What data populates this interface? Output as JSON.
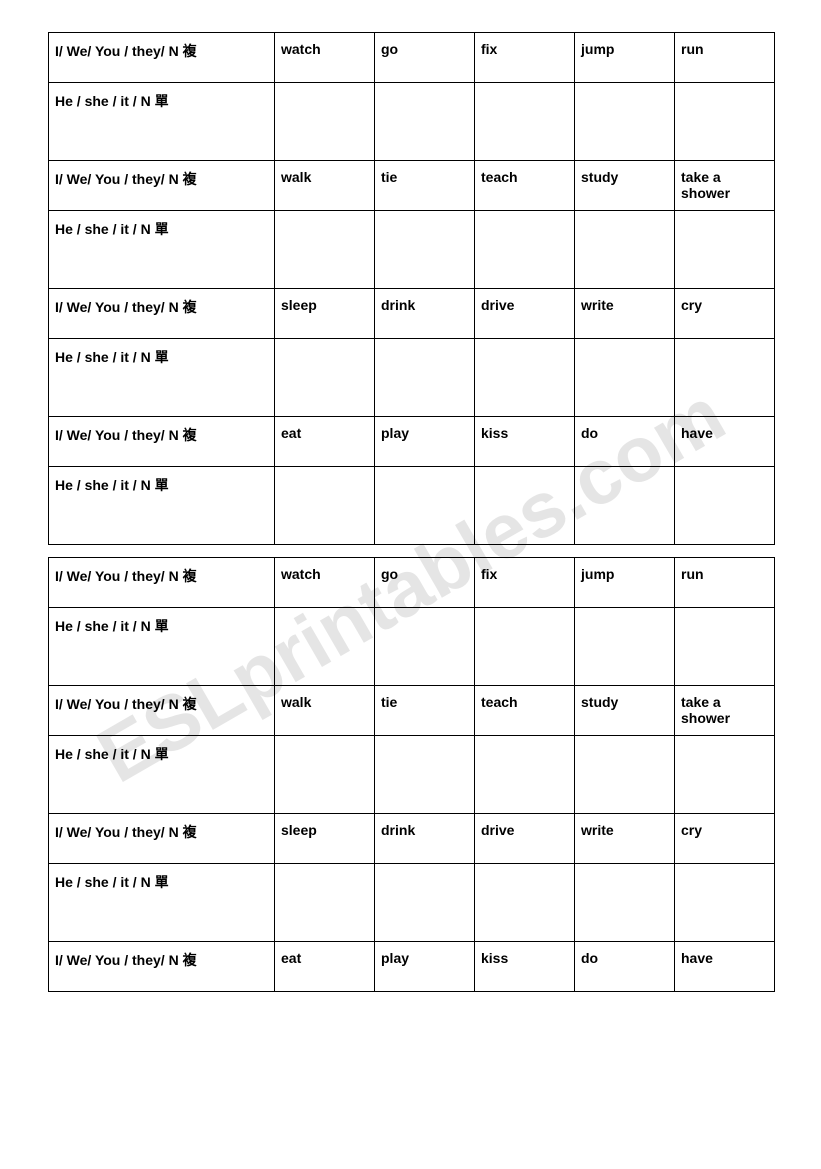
{
  "watermark": "ESLprintables.com",
  "subjects": {
    "plural": "I/ We/ You / they/ N 複",
    "singular": "He / she / it / N 單"
  },
  "tables": [
    {
      "verbGroups": [
        [
          "watch",
          "go",
          "fix",
          "jump",
          "run"
        ],
        [
          "walk",
          "tie",
          "teach",
          "study",
          "take a shower"
        ],
        [
          "sleep",
          "drink",
          "drive",
          "write",
          "cry"
        ],
        [
          "eat",
          "play",
          "kiss",
          "do",
          "have"
        ]
      ],
      "includeFinalBlankRow": true
    },
    {
      "verbGroups": [
        [
          "watch",
          "go",
          "fix",
          "jump",
          "run"
        ],
        [
          "walk",
          "tie",
          "teach",
          "study",
          "take a shower"
        ],
        [
          "sleep",
          "drink",
          "drive",
          "write",
          "cry"
        ],
        [
          "eat",
          "play",
          "kiss",
          "do",
          "have"
        ]
      ],
      "includeFinalBlankRow": false
    }
  ],
  "layout": {
    "colWidths": {
      "subject": 226,
      "verb": 100
    },
    "colors": {
      "border": "#000000",
      "text": "#000000",
      "background": "#ffffff",
      "watermark": "rgba(180, 180, 180, 0.35)"
    },
    "fontSizes": {
      "cell": 14,
      "watermark": 78
    },
    "headerRowHeight": 50,
    "blankRowHeight": 78
  }
}
